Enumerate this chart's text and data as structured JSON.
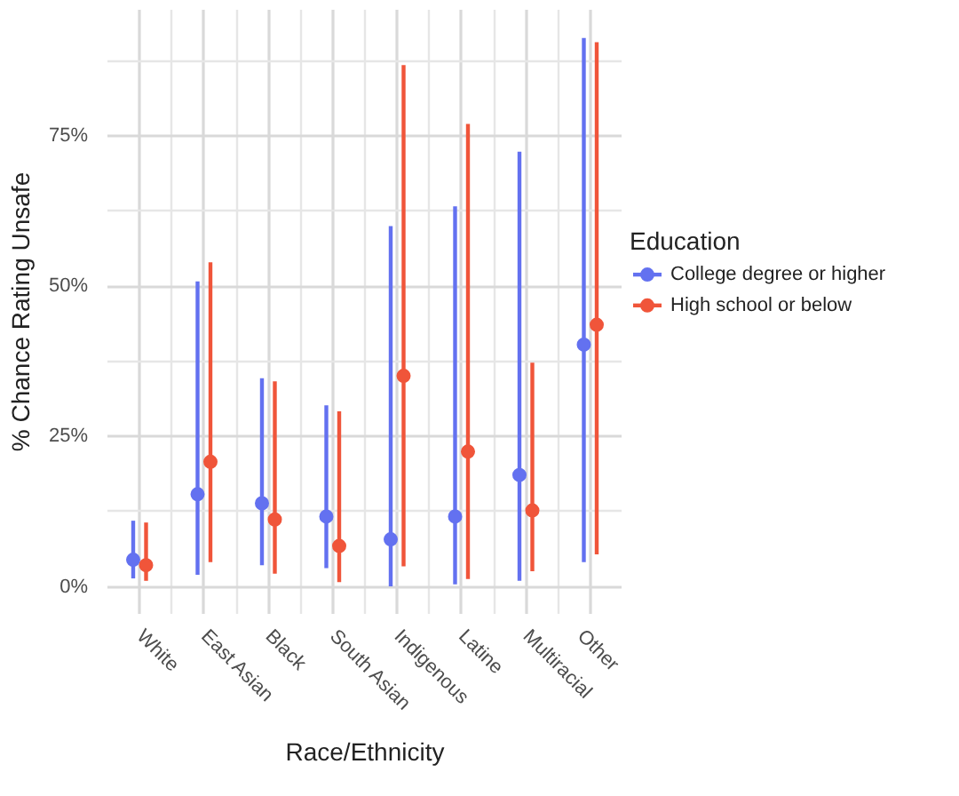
{
  "chart_data": {
    "type": "scatter",
    "xlabel": "Race/Ethnicity",
    "ylabel": "% Chance Rating Unsafe",
    "legend_title": "Education",
    "categories": [
      "White",
      "East Asian",
      "Black",
      "South Asian",
      "Indigenous",
      "Latine",
      "Multiracial",
      "Other"
    ],
    "series": [
      {
        "name": "College degree or higher",
        "color": "#6371f0",
        "values": [
          4.5,
          15.4,
          13.9,
          11.7,
          7.9,
          11.7,
          18.6,
          40.3
        ],
        "errors": [
          [
            1.4,
            11
          ],
          [
            2,
            50.8
          ],
          [
            3.6,
            34.7
          ],
          [
            3.1,
            30.2
          ],
          [
            0.1,
            60
          ],
          [
            0.4,
            63.3
          ],
          [
            1,
            72.4
          ],
          [
            4.1,
            91.3
          ]
        ]
      },
      {
        "name": "High school or below",
        "color": "#f0553a",
        "values": [
          3.6,
          20.8,
          11.2,
          6.8,
          35.1,
          22.5,
          12.7,
          43.6
        ],
        "errors": [
          [
            1,
            10.7
          ],
          [
            4.1,
            54
          ],
          [
            2.2,
            34.2
          ],
          [
            0.8,
            29.2
          ],
          [
            3.4,
            86.8
          ],
          [
            1.3,
            77
          ],
          [
            2.6,
            37.3
          ],
          [
            5.4,
            90.6
          ]
        ]
      }
    ],
    "ylim": [
      -4.5,
      96
    ],
    "yticks": [
      {
        "value": 0,
        "label": "0%"
      },
      {
        "value": 25,
        "label": "25%"
      },
      {
        "value": 50,
        "label": "50%"
      },
      {
        "value": 75,
        "label": "75%"
      }
    ],
    "grid": true,
    "legend": "right",
    "marker": "circle"
  }
}
